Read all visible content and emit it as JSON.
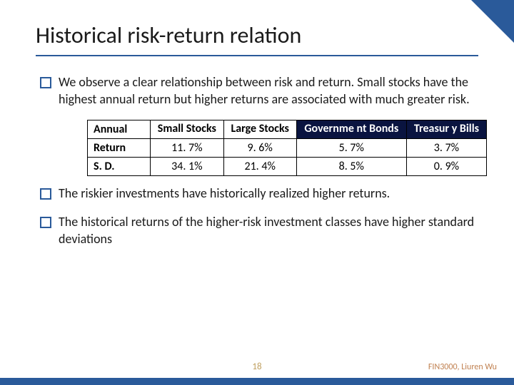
{
  "title": "Historical risk-return relation",
  "bullets": [
    "We observe a clear relationship between risk and return. Small stocks have the highest annual return but higher returns are associated with much greater risk.",
    "The riskier investments have historically realized higher returns.",
    "The historical returns of the higher-risk investment classes have higher standard deviations"
  ],
  "table": {
    "corner_label": "Annual",
    "columns": [
      "Small Stocks",
      "Large Stocks",
      "Governme nt Bonds",
      "Treasur y Bills"
    ],
    "column_header_bg": [
      "#ffffff",
      "#ffffff",
      "#0a1440",
      "#0a1440"
    ],
    "column_header_color": [
      "#000000",
      "#000000",
      "#ffffff",
      "#ffffff"
    ],
    "rows": [
      {
        "label": "Return",
        "cells": [
          "11. 7%",
          "9. 6%",
          "5. 7%",
          "3. 7%"
        ]
      },
      {
        "label": "S. D.",
        "cells": [
          "34. 1%",
          "21. 4%",
          "8. 5%",
          "0. 9%"
        ]
      }
    ]
  },
  "page_number": "18",
  "footer_credit": "FIN3000, Liuren Wu",
  "colors": {
    "accent": "#2a5a9a",
    "dark_header_bg": "#0a1440",
    "page_num": "#c0a060",
    "credit": "#c08050"
  }
}
